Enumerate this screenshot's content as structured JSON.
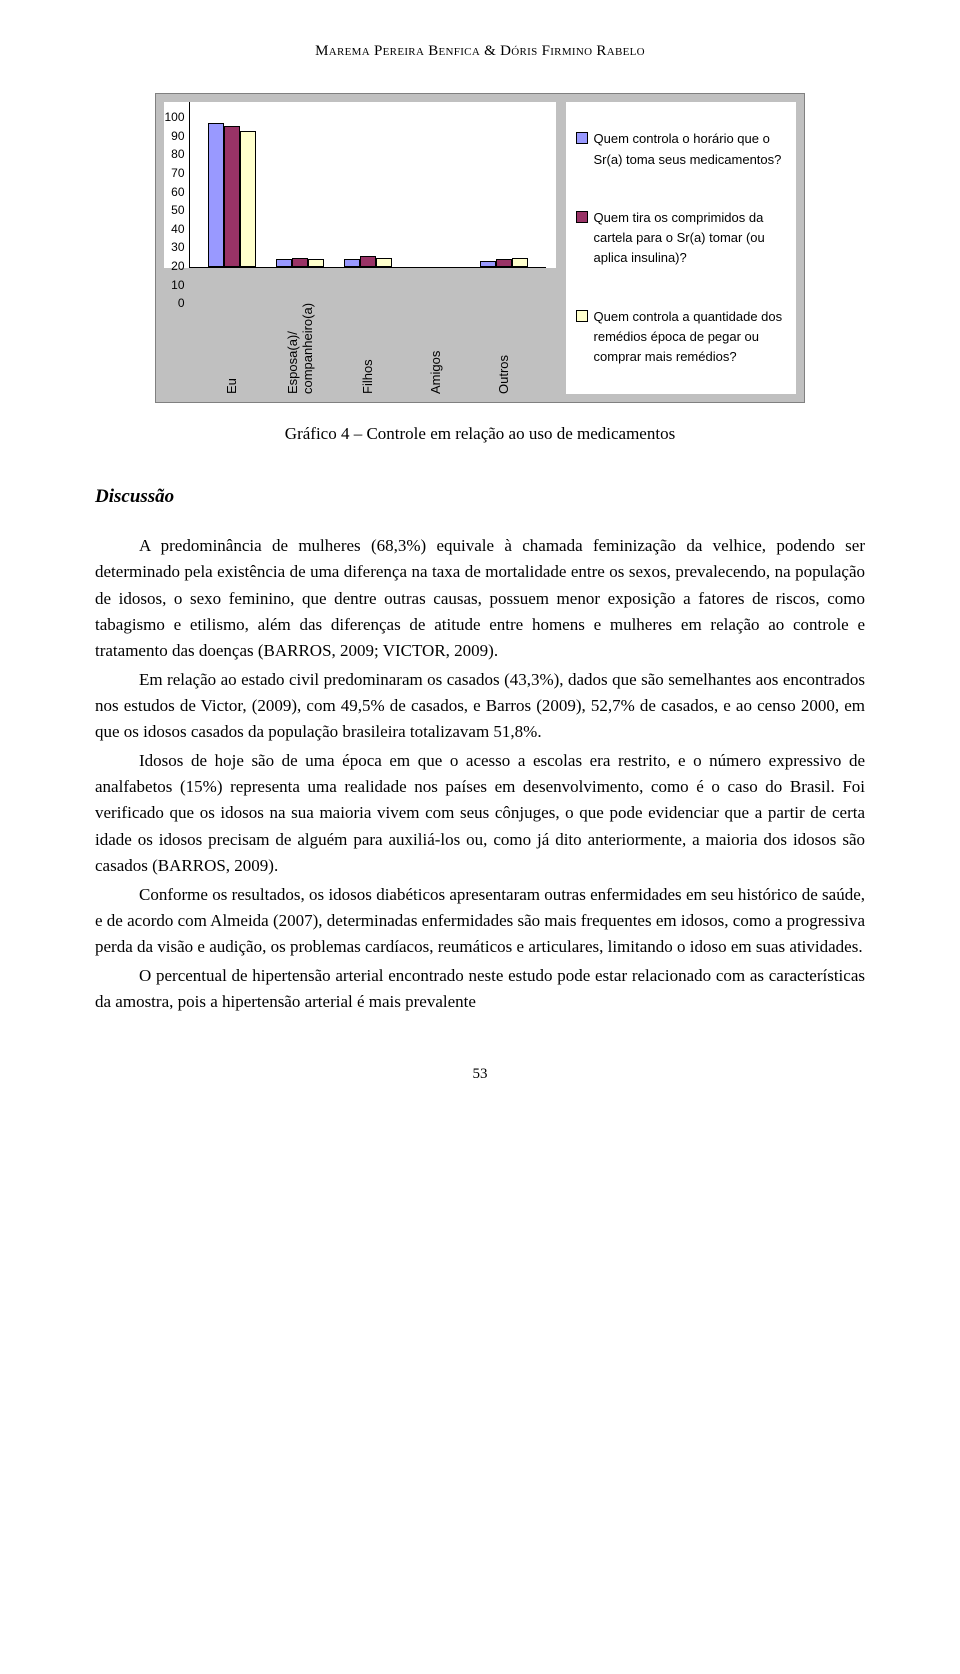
{
  "header": {
    "authors": "Marema Pereira Benfica & Dóris Firmino Rabelo"
  },
  "chart": {
    "type": "bar",
    "background_color": "#c0c0c0",
    "plot_background": "#ffffff",
    "y": {
      "min": 0,
      "max": 100,
      "step": 10,
      "ticks": [
        "100",
        "90",
        "80",
        "70",
        "60",
        "50",
        "40",
        "30",
        "20",
        "10",
        "0"
      ]
    },
    "categories": [
      {
        "label": "Eu",
        "values": [
          90,
          88,
          85
        ]
      },
      {
        "label": "Esposa(a)/\ncompanheiro(a)",
        "values": [
          5,
          6,
          5
        ]
      },
      {
        "label": "Filhos",
        "values": [
          5,
          7,
          6
        ]
      },
      {
        "label": "Amigos",
        "values": [
          0,
          0,
          0
        ]
      },
      {
        "label": "Outros",
        "values": [
          4,
          5,
          6
        ]
      }
    ],
    "series_colors": [
      "#9999ff",
      "#993366",
      "#ffffcc"
    ],
    "legend": [
      "Quem controla o horário que o Sr(a) toma seus medicamentos?",
      "Quem tira os comprimidos da cartela para o Sr(a) tomar (ou aplica insulina)?",
      "Quem controla a quantidade dos remédios época de pegar ou comprar mais remédios?"
    ],
    "caption": "Gráfico 4 – Controle em relação ao uso de medicamentos",
    "tick_fontsize": 12,
    "label_fontsize": 13,
    "legend_fontsize": 13
  },
  "section": {
    "title": "Discussão"
  },
  "paragraphs": [
    "A predominância de mulheres (68,3%) equivale à chamada feminização da velhice, podendo ser determinado pela existência de uma diferença na taxa de mortalidade entre os sexos, prevalecendo, na população de idosos, o sexo feminino, que dentre outras causas, possuem menor exposição a fatores de riscos, como tabagismo e etilismo, além das diferenças de atitude entre homens e mulheres em relação ao controle e tratamento das doenças (BARROS, 2009; VICTOR, 2009).",
    "Em relação ao estado civil predominaram os casados (43,3%), dados que são semelhantes aos encontrados nos estudos de Victor, (2009), com 49,5% de casados, e Barros (2009), 52,7% de casados, e ao censo 2000, em que os idosos casados da população brasileira totalizavam 51,8%.",
    "Idosos de hoje são de uma época em que o acesso a escolas era restrito, e o número expressivo de analfabetos (15%) representa uma realidade nos países em desenvolvimento, como é o caso do Brasil. Foi verificado que os idosos na sua maioria vivem com seus cônjuges, o que pode evidenciar que a partir de certa idade os idosos precisam de alguém para auxiliá-los ou, como já dito anteriormente, a maioria dos idosos são casados (BARROS, 2009).",
    "Conforme os resultados, os idosos diabéticos apresentaram outras enfermidades em seu histórico de saúde, e de acordo com Almeida (2007), determinadas enfermidades são mais frequentes em idosos, como a progressiva perda da visão e audição, os problemas cardíacos, reumáticos e articulares, limitando o idoso em suas atividades.",
    "O percentual de hipertensão arterial encontrado neste estudo pode estar relacionado com as características da amostra, pois a hipertensão arterial é mais prevalente"
  ],
  "page_number": "53"
}
